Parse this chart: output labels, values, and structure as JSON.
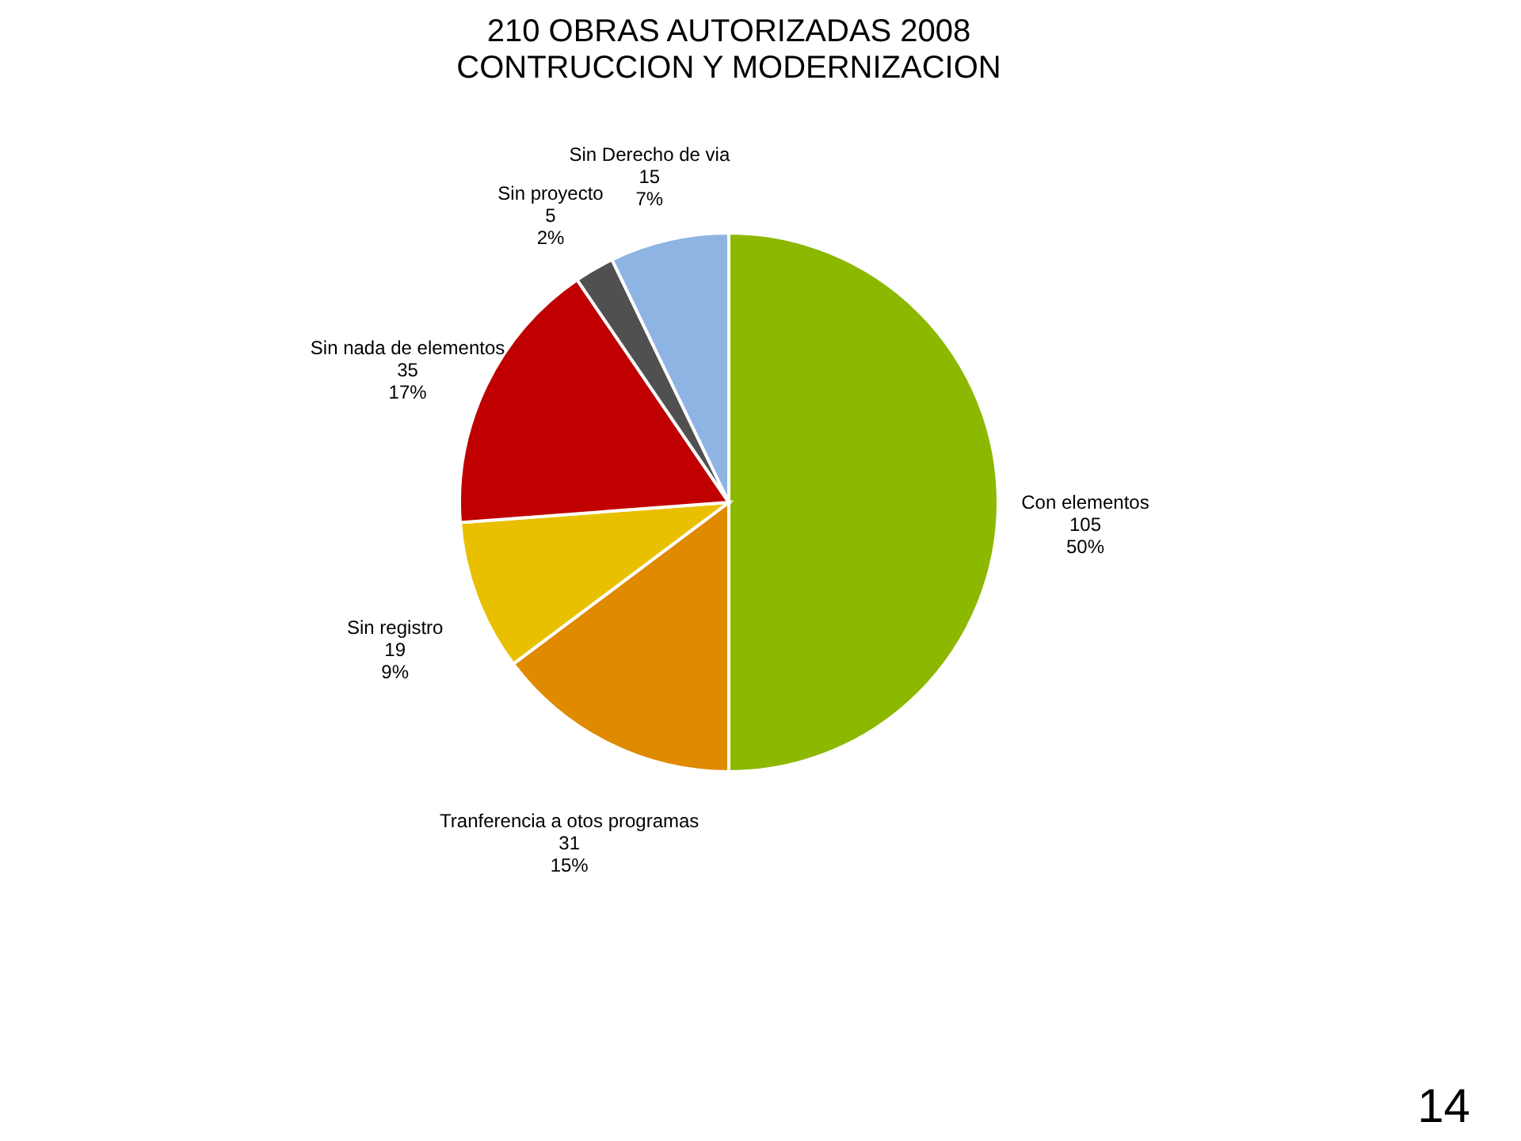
{
  "chart_data": {
    "type": "pie",
    "title": "210 OBRAS AUTORIZADAS 2008",
    "subtitle": "CONTRUCCION Y MODERNIZACION",
    "categories": [
      "Con elementos",
      "Tranferencia a otos programas",
      "Sin registro",
      "Sin nada de elementos",
      "Sin proyecto",
      "Sin Derecho de via"
    ],
    "values": [
      105,
      31,
      19,
      35,
      5,
      15
    ],
    "value_labels": [
      "105\n50%",
      "31\n15%",
      "19\n9%",
      "35\n17%",
      "5\n2%",
      "15\n7%"
    ],
    "colors": [
      "#8cb800",
      "#e08a00",
      "#e8c000",
      "#c00000",
      "#505050",
      "#8db4e2"
    ],
    "legend": false,
    "annotations": [
      "14"
    ]
  }
}
